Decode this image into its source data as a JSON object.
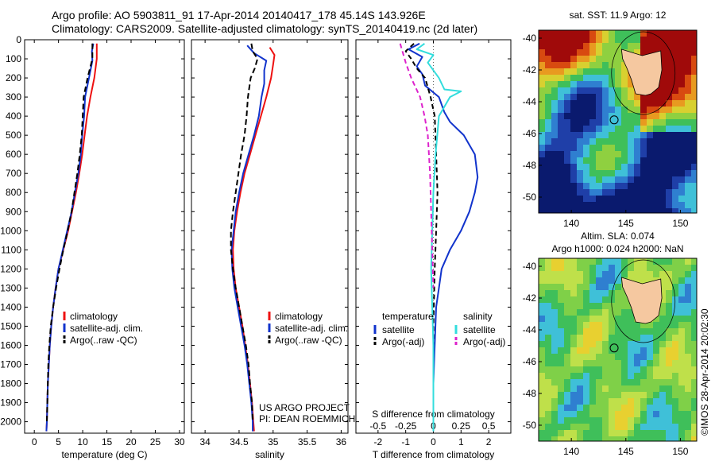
{
  "header": {
    "line1": "Argo profile: AO 5903811_91 17-Apr-2014 20140417_178 45.14S 143.926E",
    "line2": "Climatology: CARS2009. Satellite-adjusted climatology: synTS_20140419.nc (2d later)"
  },
  "credit": {
    "line1": "US ARGO PROJECT",
    "line2": "PI: DEAN ROEMMICH"
  },
  "side_label": "©IMOS 28-Apr-2014 20:02:30",
  "colors": {
    "climatology": "#ee1111",
    "satellite": "#1133cc",
    "argo": "#000000",
    "sat_salinity": "#33dddd",
    "argo_salinity": "#dd22cc"
  },
  "chart_data": [
    {
      "id": "temperature",
      "type": "line",
      "xlabel": "temperature (deg C)",
      "ylabel": "",
      "xlim": [
        -2,
        31
      ],
      "ylim": [
        2060,
        0
      ],
      "xticks": [
        0,
        5,
        10,
        15,
        20,
        25,
        30
      ],
      "yticks": [
        0,
        100,
        200,
        300,
        400,
        500,
        600,
        700,
        800,
        900,
        1000,
        1100,
        1200,
        1300,
        1400,
        1500,
        1600,
        1700,
        1800,
        1900,
        2000
      ],
      "legend": [
        "climatology",
        "satellite-adj. clim.",
        "Argo(..raw -QC)"
      ],
      "series": [
        {
          "name": "climatology",
          "color": "#ee1111",
          "dash": "",
          "points": [
            [
              12.9,
              20
            ],
            [
              12.9,
              100
            ],
            [
              12.4,
              200
            ],
            [
              11.6,
              300
            ],
            [
              10.9,
              400
            ],
            [
              10.4,
              500
            ],
            [
              9.9,
              600
            ],
            [
              9.3,
              700
            ],
            [
              8.6,
              800
            ],
            [
              7.8,
              900
            ],
            [
              7.0,
              1000
            ],
            [
              6.0,
              1100
            ],
            [
              5.0,
              1200
            ],
            [
              4.4,
              1300
            ],
            [
              3.9,
              1400
            ],
            [
              3.5,
              1500
            ],
            [
              3.2,
              1600
            ],
            [
              3.0,
              1700
            ],
            [
              2.8,
              1800
            ],
            [
              2.7,
              1900
            ],
            [
              2.6,
              2000
            ],
            [
              2.5,
              2050
            ]
          ]
        },
        {
          "name": "satellite-adj. clim.",
          "color": "#1133cc",
          "dash": "",
          "points": [
            [
              12.2,
              20
            ],
            [
              11.9,
              60
            ],
            [
              12.0,
              110
            ],
            [
              11.3,
              200
            ],
            [
              10.5,
              300
            ],
            [
              10.3,
              400
            ],
            [
              9.9,
              500
            ],
            [
              9.6,
              600
            ],
            [
              9.1,
              700
            ],
            [
              8.4,
              800
            ],
            [
              7.7,
              900
            ],
            [
              6.8,
              1000
            ],
            [
              5.9,
              1100
            ],
            [
              5.0,
              1200
            ],
            [
              4.4,
              1300
            ],
            [
              3.9,
              1400
            ],
            [
              3.5,
              1500
            ],
            [
              3.2,
              1600
            ],
            [
              3.0,
              1700
            ],
            [
              2.8,
              1800
            ],
            [
              2.7,
              1900
            ],
            [
              2.6,
              2000
            ],
            [
              2.5,
              2050
            ]
          ]
        },
        {
          "name": "Argo(..raw -QC)",
          "color": "#000000",
          "dash": "7,4",
          "points": [
            [
              12.0,
              20
            ],
            [
              12.0,
              100
            ],
            [
              11.0,
              200
            ],
            [
              10.2,
              300
            ],
            [
              10.0,
              400
            ],
            [
              9.8,
              500
            ],
            [
              9.4,
              600
            ],
            [
              8.9,
              700
            ],
            [
              8.3,
              800
            ],
            [
              7.7,
              900
            ],
            [
              6.9,
              1000
            ],
            [
              6.0,
              1100
            ],
            [
              5.2,
              1200
            ],
            [
              4.5,
              1300
            ],
            [
              3.9,
              1400
            ],
            [
              3.4,
              1500
            ],
            [
              3.1,
              1600
            ],
            [
              2.9,
              1700
            ],
            [
              2.8,
              1800
            ],
            [
              2.7,
              1900
            ],
            [
              2.6,
              2000
            ]
          ]
        }
      ]
    },
    {
      "id": "salinity",
      "type": "line",
      "xlabel": "salinity",
      "ylabel": "",
      "xlim": [
        33.8,
        36.1
      ],
      "ylim": [
        2060,
        0
      ],
      "xticks": [
        34,
        34.5,
        35,
        35.5,
        36
      ],
      "xtick_labels": [
        "34",
        "34.5",
        "35",
        "35.5",
        "36"
      ],
      "legend": [
        "climatology",
        "satellite-adj. clim.",
        "Argo(..raw -QC)"
      ],
      "series": [
        {
          "name": "climatology",
          "color": "#ee1111",
          "dash": "",
          "points": [
            [
              34.95,
              40
            ],
            [
              35.02,
              80
            ],
            [
              35.0,
              130
            ],
            [
              34.97,
              200
            ],
            [
              34.9,
              300
            ],
            [
              34.82,
              400
            ],
            [
              34.74,
              500
            ],
            [
              34.66,
              600
            ],
            [
              34.58,
              700
            ],
            [
              34.52,
              800
            ],
            [
              34.47,
              900
            ],
            [
              34.43,
              1000
            ],
            [
              34.41,
              1100
            ],
            [
              34.42,
              1200
            ],
            [
              34.45,
              1300
            ],
            [
              34.5,
              1400
            ],
            [
              34.55,
              1500
            ],
            [
              34.59,
              1600
            ],
            [
              34.63,
              1700
            ],
            [
              34.66,
              1800
            ],
            [
              34.69,
              1900
            ],
            [
              34.71,
              2000
            ],
            [
              34.72,
              2050
            ]
          ]
        },
        {
          "name": "satellite-adj. clim.",
          "color": "#1133cc",
          "dash": "",
          "points": [
            [
              34.62,
              30
            ],
            [
              34.72,
              70
            ],
            [
              34.9,
              110
            ],
            [
              34.87,
              160
            ],
            [
              34.87,
              230
            ],
            [
              34.83,
              300
            ],
            [
              34.79,
              400
            ],
            [
              34.72,
              500
            ],
            [
              34.64,
              600
            ],
            [
              34.56,
              700
            ],
            [
              34.5,
              800
            ],
            [
              34.45,
              900
            ],
            [
              34.42,
              1000
            ],
            [
              34.39,
              1100
            ],
            [
              34.4,
              1200
            ],
            [
              34.43,
              1300
            ],
            [
              34.48,
              1400
            ],
            [
              34.53,
              1500
            ],
            [
              34.58,
              1600
            ],
            [
              34.62,
              1700
            ],
            [
              34.65,
              1800
            ],
            [
              34.68,
              1900
            ],
            [
              34.7,
              2000
            ],
            [
              34.7,
              2050
            ]
          ]
        },
        {
          "name": "Argo(..raw -QC)",
          "color": "#000000",
          "dash": "7,4",
          "points": [
            [
              34.68,
              20
            ],
            [
              34.7,
              60
            ],
            [
              34.77,
              100
            ],
            [
              34.73,
              150
            ],
            [
              34.67,
              200
            ],
            [
              34.63,
              300
            ],
            [
              34.61,
              400
            ],
            [
              34.58,
              500
            ],
            [
              34.53,
              600
            ],
            [
              34.49,
              700
            ],
            [
              34.45,
              800
            ],
            [
              34.41,
              900
            ],
            [
              34.38,
              1000
            ],
            [
              34.38,
              1100
            ],
            [
              34.41,
              1200
            ],
            [
              34.45,
              1300
            ],
            [
              34.5,
              1400
            ],
            [
              34.55,
              1500
            ],
            [
              34.6,
              1600
            ],
            [
              34.64,
              1700
            ],
            [
              34.66,
              1800
            ],
            [
              34.69,
              1900
            ],
            [
              34.7,
              2000
            ]
          ]
        }
      ]
    },
    {
      "id": "difference",
      "type": "line",
      "xlabel": "T difference from climatology",
      "title_bottom": "S difference from climatology",
      "xlim": [
        -2.8,
        2.8
      ],
      "ylim": [
        2060,
        0
      ],
      "xticks": [
        -2,
        -1,
        0,
        1,
        2
      ],
      "s_ticks": [
        -0.5,
        -0.25,
        0,
        0.25,
        0.5
      ],
      "s_tick_labels": [
        "-0.5",
        "-0.25",
        "0",
        "0.25",
        "0.5"
      ],
      "s_scale": 4,
      "legend_temperature": {
        "title": "temperature",
        "items": [
          "satellite",
          "Argo(-adj)"
        ]
      },
      "legend_salinity": {
        "title": "salinity",
        "items": [
          "satellite",
          "Argo(-adj)"
        ]
      },
      "series": [
        {
          "name": "temperature satellite",
          "color": "#1133cc",
          "dash": "",
          "points": [
            [
              -0.5,
              20
            ],
            [
              -0.9,
              50
            ],
            [
              -0.4,
              90
            ],
            [
              -0.6,
              140
            ],
            [
              -0.4,
              180
            ],
            [
              -0.3,
              240
            ],
            [
              0.2,
              300
            ],
            [
              0.4,
              380
            ],
            [
              0.6,
              430
            ],
            [
              1.1,
              500
            ],
            [
              1.5,
              600
            ],
            [
              1.6,
              720
            ],
            [
              1.5,
              800
            ],
            [
              1.3,
              900
            ],
            [
              1.0,
              1000
            ],
            [
              0.6,
              1100
            ],
            [
              0.3,
              1200
            ],
            [
              0.2,
              1300
            ],
            [
              0.1,
              1400
            ],
            [
              0.05,
              1600
            ],
            [
              0,
              1800
            ],
            [
              0,
              2050
            ]
          ]
        },
        {
          "name": "temperature Argo(-adj)",
          "color": "#000000",
          "dash": "6,4",
          "points": [
            [
              -0.7,
              20
            ],
            [
              -1.0,
              60
            ],
            [
              -0.8,
              100
            ],
            [
              -0.6,
              150
            ],
            [
              -0.3,
              200
            ],
            [
              -0.1,
              300
            ],
            [
              0.05,
              400
            ],
            [
              0.1,
              600
            ],
            [
              0.15,
              800
            ],
            [
              0.1,
              1000
            ],
            [
              0.05,
              1200
            ],
            [
              0,
              1500
            ],
            [
              0,
              2000
            ]
          ]
        },
        {
          "name": "salinity satellite",
          "color": "#33dddd",
          "dash": "",
          "points": [
            [
              -0.08,
              20
            ],
            [
              -0.15,
              50
            ],
            [
              0.0,
              80
            ],
            [
              -0.05,
              120
            ],
            [
              0.05,
              200
            ],
            [
              0.1,
              260
            ],
            [
              0.25,
              270
            ],
            [
              0.15,
              300
            ],
            [
              0.05,
              400
            ],
            [
              0.02,
              600
            ],
            [
              0,
              800
            ],
            [
              -0.01,
              1000
            ],
            [
              -0.02,
              1200
            ],
            [
              -0.01,
              1400
            ],
            [
              0,
              1600
            ],
            [
              0,
              2050
            ]
          ]
        },
        {
          "name": "salinity Argo(-adj)",
          "color": "#dd22cc",
          "dash": "6,4",
          "points": [
            [
              -0.3,
              20
            ],
            [
              -0.25,
              120
            ],
            [
              -0.2,
              200
            ],
            [
              -0.12,
              300
            ],
            [
              -0.08,
              400
            ],
            [
              -0.05,
              500
            ],
            [
              -0.03,
              700
            ],
            [
              -0.02,
              900
            ],
            [
              -0.01,
              1100
            ],
            [
              0,
              1300
            ]
          ]
        }
      ]
    }
  ],
  "maps": [
    {
      "id": "sst",
      "title": "sat. SST: 11.9 Argo: 12",
      "subtitle": "",
      "xlim": [
        137,
        151.5
      ],
      "ylim": [
        -51,
        -39.5
      ],
      "xticks": [
        140,
        145,
        150
      ],
      "yticks": [
        -40,
        -42,
        -44,
        -46,
        -48,
        -50
      ],
      "profile_lon": 143.926,
      "profile_lat": -45.14
    },
    {
      "id": "sla",
      "title": "Altim. SLA: 0.074",
      "subtitle": "Argo h1000: 0.024 h2000: NaN",
      "xlim": [
        137,
        151.5
      ],
      "ylim": [
        -51,
        -39.5
      ],
      "xticks": [
        140,
        145,
        150
      ],
      "yticks": [
        -40,
        -42,
        -44,
        -46,
        -48,
        -50
      ],
      "profile_lon": 143.926,
      "profile_lat": -45.14
    }
  ]
}
